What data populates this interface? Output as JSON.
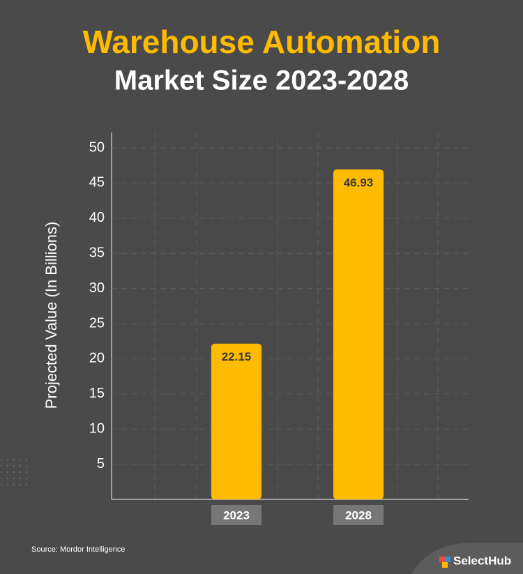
{
  "chart_data": {
    "type": "bar",
    "title": "Warehouse Automation",
    "subtitle": "Market Size 2023-2028",
    "y_label": "Projected Value (In Billions)",
    "categories": [
      "2023",
      "2028"
    ],
    "values": [
      22.15,
      46.93
    ],
    "color": "#ffbb00",
    "ylim": [
      0,
      50
    ],
    "yticks": [
      5,
      10,
      15,
      20,
      25,
      30,
      35,
      40,
      45,
      50
    ],
    "grid": true
  },
  "footer": {
    "source": "Source: Mordor Intelligence",
    "brand": "SelectHub"
  }
}
